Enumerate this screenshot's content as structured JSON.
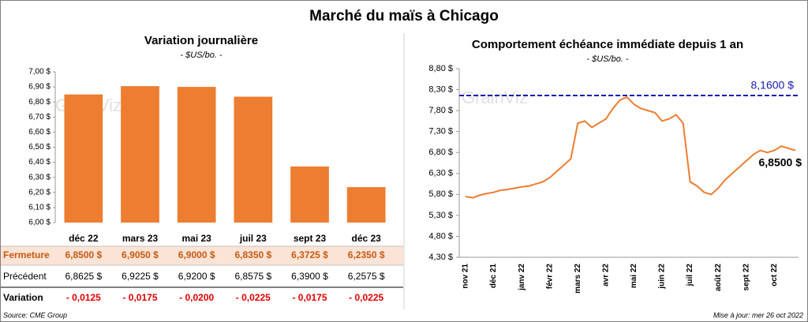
{
  "title": "Marché du maïs à Chicago",
  "chart_data": [
    {
      "type": "bar",
      "title": "Variation journalière",
      "subtitle": "- $US/bo. -",
      "watermark": "GrainViz",
      "categories": [
        "déc 22",
        "mars 23",
        "mai 23",
        "juil 23",
        "sept 23",
        "déc 23"
      ],
      "values": [
        6.85,
        6.905,
        6.9,
        6.835,
        6.3725,
        6.235
      ],
      "color": "#ed7d31",
      "ylim": [
        6.0,
        7.0
      ],
      "yticks": [
        {
          "value": 6.0,
          "label": "6,00 $"
        },
        {
          "value": 6.1,
          "label": "6,10 $"
        },
        {
          "value": 6.2,
          "label": "6,20 $"
        },
        {
          "value": 6.3,
          "label": "6,30 $"
        },
        {
          "value": 6.4,
          "label": "6,40 $"
        },
        {
          "value": 6.5,
          "label": "6,50 $"
        },
        {
          "value": 6.6,
          "label": "6,60 $"
        },
        {
          "value": 6.7,
          "label": "6,70 $"
        },
        {
          "value": 6.8,
          "label": "6,80 $"
        },
        {
          "value": 6.9,
          "label": "6,90 $"
        },
        {
          "value": 7.0,
          "label": "7,00 $"
        }
      ],
      "grid": false
    },
    {
      "type": "line",
      "title": "Comportement échéance immédiate depuis 1 an",
      "subtitle": "- $US/bo. -",
      "watermark": "GrainViz",
      "categories": [
        "nov 21",
        null,
        null,
        null,
        "déc 21",
        null,
        null,
        null,
        "janv 22",
        null,
        null,
        null,
        "févr 22",
        null,
        null,
        null,
        "mars 22",
        null,
        null,
        null,
        "avr 22",
        null,
        null,
        null,
        "mai 22",
        null,
        null,
        null,
        "juin 22",
        null,
        null,
        null,
        "juil 22",
        null,
        null,
        null,
        "août 22",
        null,
        null,
        null,
        "sept 22",
        null,
        null,
        null,
        "oct 22",
        null,
        null,
        null
      ],
      "series": [
        {
          "color": "#ed7d31",
          "values": [
            5.75,
            5.72,
            5.78,
            5.82,
            5.85,
            5.9,
            5.92,
            5.95,
            5.98,
            6.0,
            6.05,
            6.1,
            6.2,
            6.35,
            6.5,
            6.65,
            7.5,
            7.55,
            7.4,
            7.5,
            7.6,
            7.85,
            8.05,
            8.12,
            7.95,
            7.85,
            7.8,
            7.75,
            7.55,
            7.6,
            7.7,
            7.5,
            6.1,
            6.0,
            5.85,
            5.8,
            5.95,
            6.15,
            6.3,
            6.45,
            6.6,
            6.75,
            6.85,
            6.8,
            6.85,
            6.95,
            6.9,
            6.85
          ]
        }
      ],
      "reference_line": {
        "value": 8.16,
        "label": "8,1600 $",
        "color": "#1a1aaa"
      },
      "annotation": {
        "value": 6.85,
        "label": "6,8500 $"
      },
      "ylim": [
        4.3,
        8.8
      ],
      "yticks": [
        {
          "value": 4.3,
          "label": "4,30 $"
        },
        {
          "value": 4.8,
          "label": "4,80 $"
        },
        {
          "value": 5.3,
          "label": "5,30 $"
        },
        {
          "value": 5.8,
          "label": "5,80 $"
        },
        {
          "value": 6.3,
          "label": "6,30 $"
        },
        {
          "value": 6.8,
          "label": "6,80 $"
        },
        {
          "value": 7.3,
          "label": "7,30 $"
        },
        {
          "value": 7.8,
          "label": "7,80 $"
        },
        {
          "value": 8.3,
          "label": "8,30 $"
        },
        {
          "value": 8.8,
          "label": "8,80 $"
        }
      ],
      "grid": false
    }
  ],
  "table": {
    "rows": [
      {
        "label": "Fermeture",
        "values": [
          "6,8500 $",
          "6,9050 $",
          "6,9000 $",
          "6,8350 $",
          "6,3725 $",
          "6,2350 $"
        ]
      },
      {
        "label": "Précédent",
        "values": [
          "6,8625 $",
          "6,9225 $",
          "6,9200 $",
          "6,8575 $",
          "6,3900 $",
          "6,2575 $"
        ]
      },
      {
        "label": "Variation",
        "values": [
          "- 0,0125",
          "- 0,0175",
          "- 0,0200",
          "- 0,0225",
          "- 0,0175",
          "- 0,0225"
        ]
      }
    ]
  },
  "source": "Source: CME Group",
  "updated": "Mise à jour: mer 26 oct 2022"
}
